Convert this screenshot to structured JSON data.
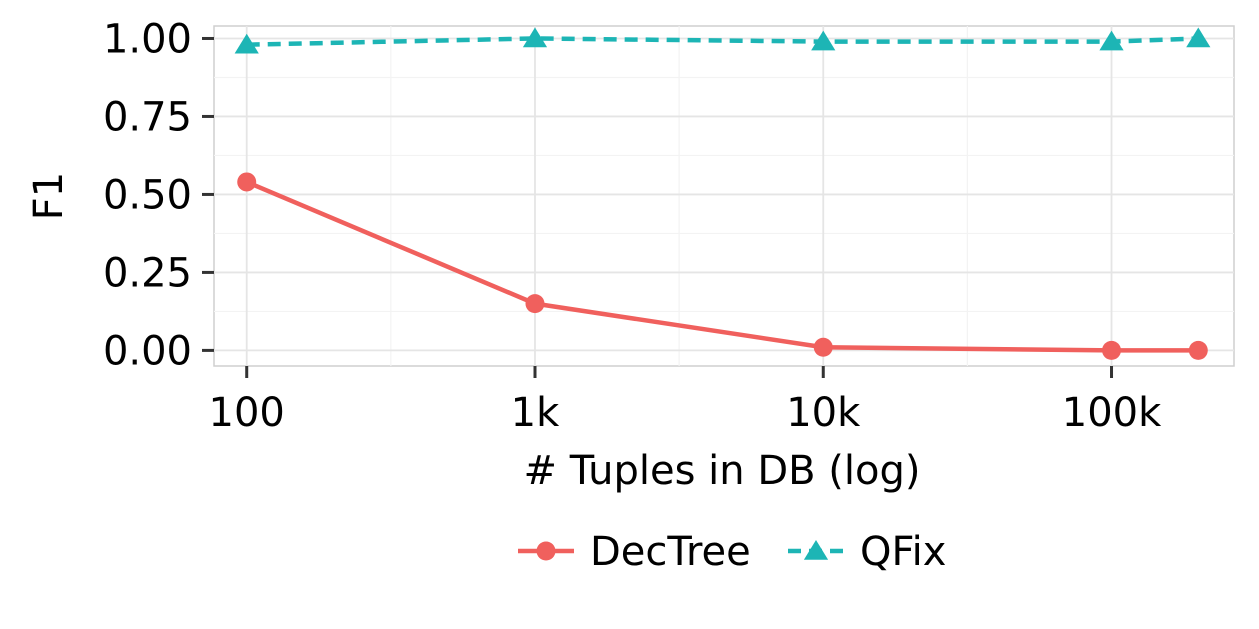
{
  "chart_data": {
    "type": "line",
    "xlabel": "# Tuples in DB (log)",
    "ylabel": "F1",
    "x_scale": "log",
    "xlim": [
      77,
      266000
    ],
    "ylim": [
      -0.05,
      1.04
    ],
    "x_ticks": [
      {
        "value": 100,
        "label": "100"
      },
      {
        "value": 1000,
        "label": "1k"
      },
      {
        "value": 10000,
        "label": "10k"
      },
      {
        "value": 100000,
        "label": "100k"
      }
    ],
    "y_ticks": [
      {
        "value": 0.0,
        "label": "0.00"
      },
      {
        "value": 0.25,
        "label": "0.25"
      },
      {
        "value": 0.5,
        "label": "0.50"
      },
      {
        "value": 0.75,
        "label": "0.75"
      },
      {
        "value": 1.0,
        "label": "1.00"
      }
    ],
    "grid": true,
    "legend_position": "bottom",
    "series": [
      {
        "name": "DecTree",
        "color": "#F0605D",
        "marker": "circle",
        "linestyle": "solid",
        "x": [
          100,
          1000,
          10000,
          100000,
          200000
        ],
        "y": [
          0.54,
          0.15,
          0.01,
          0.0,
          0.0
        ]
      },
      {
        "name": "QFix",
        "color": "#1DB5B5",
        "marker": "triangle",
        "linestyle": "dashed",
        "x": [
          100,
          1000,
          10000,
          100000,
          200000
        ],
        "y": [
          0.98,
          1.0,
          0.99,
          0.99,
          1.0
        ]
      }
    ]
  }
}
